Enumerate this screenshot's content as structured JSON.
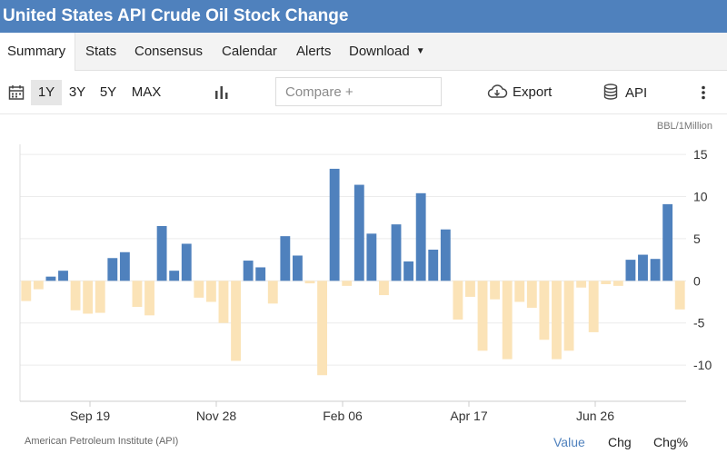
{
  "header": {
    "title": "United States API Crude Oil Stock Change"
  },
  "nav": {
    "tabs": [
      {
        "label": "Summary",
        "active": true
      },
      {
        "label": "Stats"
      },
      {
        "label": "Consensus"
      },
      {
        "label": "Calendar"
      },
      {
        "label": "Alerts"
      },
      {
        "label": "Download"
      }
    ]
  },
  "toolbar": {
    "calendar_icon": "calendar-icon",
    "ranges": [
      "1Y",
      "3Y",
      "5Y",
      "MAX"
    ],
    "active_range": "1Y",
    "chart_type_icon": "bar-chart-icon",
    "compare_placeholder": "Compare +",
    "export_label": "Export",
    "export_icon": "cloud-download-icon",
    "api_label": "API",
    "api_icon": "database-icon",
    "more_icon": "vertical-dots-icon"
  },
  "chart_data": {
    "type": "bar",
    "unit_label": "BBL/1Million",
    "x_tick_labels": [
      "Sep 19",
      "Nov 28",
      "Feb 06",
      "Apr 17",
      "Jun 26"
    ],
    "y_ticks": [
      15,
      10,
      5,
      0,
      -5,
      -10
    ],
    "ylim": [
      -14.3,
      16.2
    ],
    "values": [
      -2.4,
      -1.0,
      0.5,
      1.2,
      -3.5,
      -3.9,
      -3.8,
      2.7,
      3.4,
      -3.1,
      -4.1,
      6.5,
      1.2,
      4.4,
      -2.0,
      -2.5,
      -5.0,
      -9.5,
      2.4,
      1.6,
      -2.7,
      5.3,
      3.0,
      -0.3,
      -11.2,
      13.3,
      -0.6,
      11.4,
      5.6,
      -1.7,
      6.7,
      2.3,
      10.4,
      3.7,
      6.1,
      -4.6,
      -1.9,
      -8.3,
      -2.2,
      -9.3,
      -2.5,
      -3.2,
      -7.0,
      -9.3,
      -8.3,
      -0.8,
      -6.1,
      -0.4,
      -0.6,
      2.5,
      3.1,
      2.6,
      9.1,
      -3.4
    ],
    "positive_color": "#4f81bd",
    "negative_color": "#fbe3b7",
    "grid": true,
    "legend": "none"
  },
  "footer": {
    "source": "American Petroleum Institute (API)",
    "modes": [
      "Value",
      "Chg",
      "Chg%"
    ],
    "active_mode": "Value"
  }
}
